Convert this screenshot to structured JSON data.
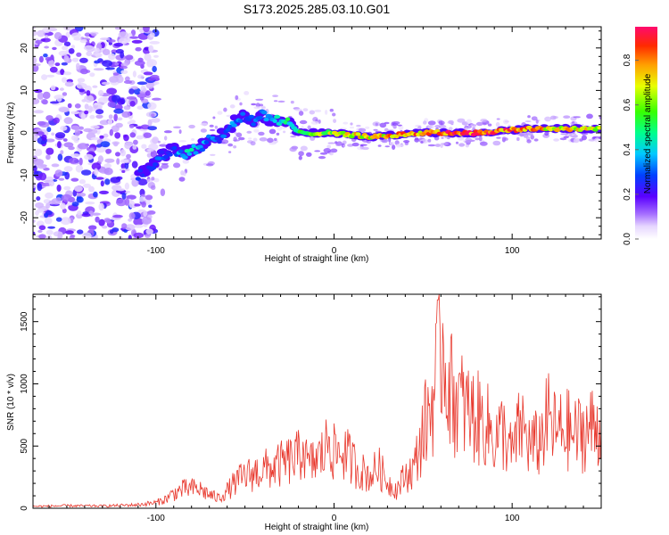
{
  "title": "S173.2025.285.03.10.G01",
  "chart_data": [
    {
      "type": "heatmap",
      "xlabel": "Height of straight line (km)",
      "ylabel": "Frequency (Hz)",
      "xlim": [
        -169,
        150
      ],
      "ylim": [
        -25,
        25
      ],
      "xticks": [
        -100,
        0,
        100
      ],
      "yticks": [
        -20,
        -10,
        0,
        10,
        20
      ],
      "colorbar": {
        "label": "Normalized spectral amplitude",
        "range": [
          0,
          0.95
        ],
        "ticks": [
          0.0,
          0.2,
          0.4,
          0.6,
          0.8
        ]
      },
      "ridge": {
        "x": [
          -110,
          -105,
          -100,
          -95,
          -90,
          -85,
          -80,
          -75,
          -70,
          -65,
          -60,
          -55,
          -50,
          -45,
          -40,
          -35,
          -30,
          -25,
          -20,
          -10,
          0,
          20,
          50,
          80,
          110,
          150
        ],
        "freq_hz": [
          -10,
          -9,
          -7,
          -5,
          -4,
          -5,
          -4,
          -3,
          -2,
          -1,
          0,
          3,
          4,
          3,
          4,
          3,
          3,
          2,
          0,
          0,
          0,
          -1,
          0,
          0,
          1,
          1
        ],
        "amp": [
          0.35,
          0.25,
          0.3,
          0.3,
          0.3,
          0.4,
          0.45,
          0.4,
          0.35,
          0.3,
          0.35,
          0.35,
          0.3,
          0.35,
          0.35,
          0.35,
          0.45,
          0.5,
          0.55,
          0.65,
          0.7,
          0.75,
          0.85,
          0.95,
          0.8,
          0.7
        ]
      }
    },
    {
      "type": "line",
      "xlabel": "Height of straight line (km)",
      "ylabel": "SNR (10 * v/v)",
      "xlim": [
        -169,
        150
      ],
      "ylim": [
        0,
        1720
      ],
      "xticks": [
        -100,
        0,
        100
      ],
      "yticks": [
        0,
        500,
        1000,
        1500
      ],
      "color": "#e8392e",
      "series": [
        {
          "name": "SNR",
          "x": [
            -169,
            -150,
            -130,
            -110,
            -100,
            -95,
            -90,
            -85,
            -80,
            -75,
            -70,
            -65,
            -60,
            -55,
            -50,
            -45,
            -40,
            -35,
            -30,
            -25,
            -20,
            -17,
            -15,
            -10,
            -5,
            -3,
            0,
            5,
            10,
            15,
            20,
            25,
            30,
            35,
            40,
            45,
            50,
            55,
            58,
            60,
            62,
            64,
            66,
            70,
            75,
            80,
            85,
            90,
            95,
            100,
            105,
            110,
            115,
            120,
            125,
            130,
            135,
            140,
            145,
            150
          ],
          "y": [
            15,
            20,
            18,
            28,
            45,
            70,
            120,
            150,
            160,
            150,
            110,
            80,
            140,
            210,
            260,
            280,
            310,
            320,
            350,
            380,
            410,
            520,
            330,
            390,
            450,
            600,
            440,
            460,
            380,
            300,
            260,
            330,
            210,
            150,
            260,
            320,
            620,
            850,
            1100,
            1380,
            1250,
            1080,
            920,
            860,
            780,
            720,
            690,
            560,
            620,
            430,
            680,
            500,
            520,
            720,
            600,
            640,
            580,
            620,
            650,
            660
          ]
        }
      ]
    }
  ]
}
